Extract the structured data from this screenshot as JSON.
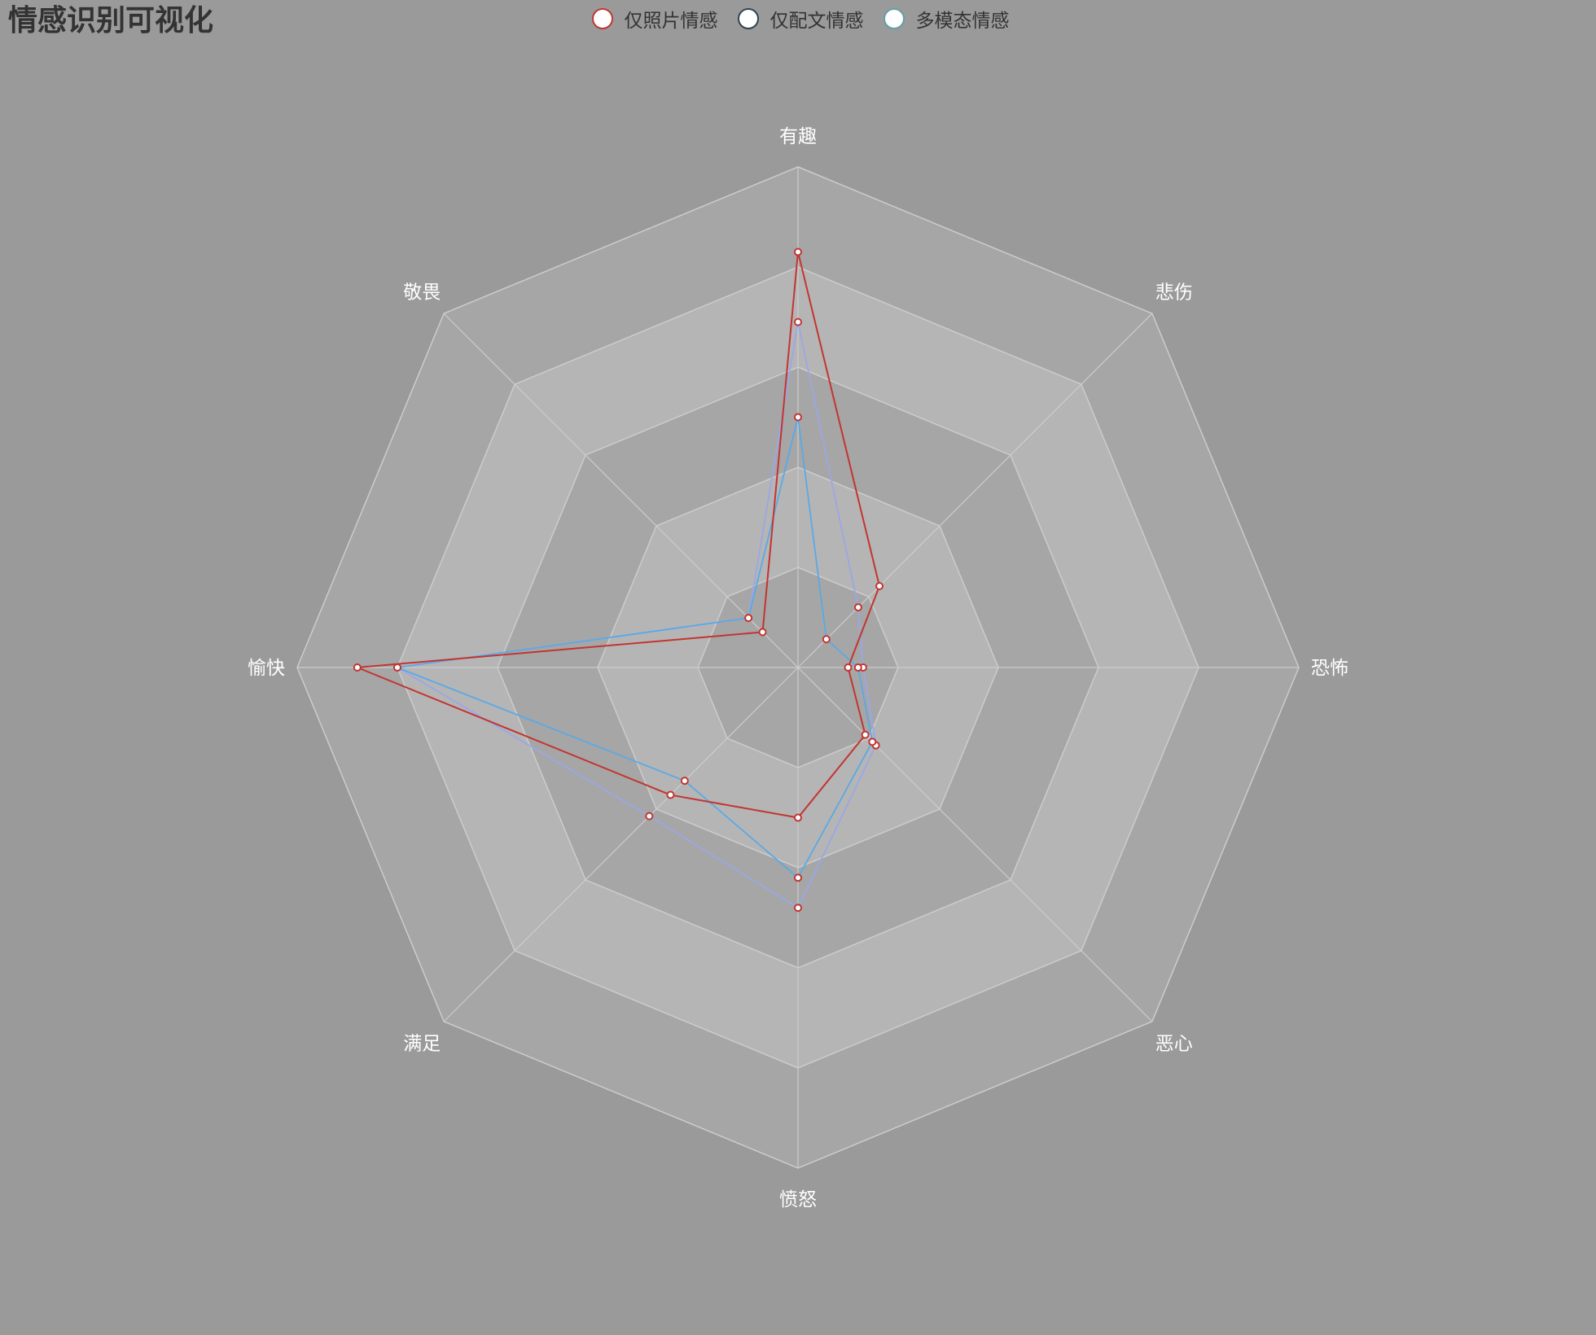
{
  "chart_data": {
    "type": "radar",
    "title": "情感识别可视化",
    "indicators": [
      "有趣",
      "悲伤",
      "恐怖",
      "恶心",
      "愤怒",
      "满足",
      "愉快",
      "敬畏"
    ],
    "max": 100,
    "split_number": 5,
    "legend_position": "top-center",
    "series": [
      {
        "name": "仅照片情感",
        "values": [
          83,
          23,
          10,
          19,
          30,
          36,
          88,
          10
        ],
        "color": "#c23531"
      },
      {
        "name": "仅配文情感",
        "values": [
          69,
          17,
          13,
          22,
          48,
          42,
          80,
          14
        ],
        "color": "#2f4554"
      },
      {
        "name": "多模态情感",
        "values": [
          50,
          8,
          12,
          21,
          42,
          32,
          80,
          14
        ],
        "color": "#61a0a8"
      }
    ]
  },
  "colors": {
    "background": "#9a9a9a",
    "split_area_odd": "#a6a6a6",
    "split_area_even": "#b5b5b5",
    "split_line": "#cccccc",
    "label": "#ffffff",
    "point_fill": "#ffffff",
    "point_stroke": "#c23531"
  }
}
